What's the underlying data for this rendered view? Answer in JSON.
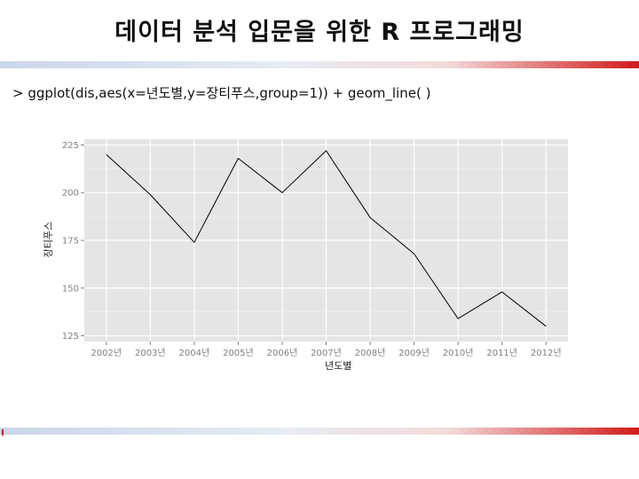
{
  "slide": {
    "title": "데이터 분석 입문을 위한 R 프로그래밍",
    "code": "> ggplot(dis,aes(x=년도별,y=장티푸스,group=1)) + geom_line( )"
  },
  "colors": {
    "panel_bg": "#e5e5e5",
    "grid_major": "#ffffff",
    "line": "#000000",
    "tick_text": "#7f7f7f"
  },
  "chart_data": {
    "type": "line",
    "xlabel": "년도별",
    "ylabel": "장티푸스",
    "categories": [
      "2002년",
      "2003년",
      "2004년",
      "2005년",
      "2006년",
      "2007년",
      "2008년",
      "2009년",
      "2010년",
      "2011년",
      "2012년"
    ],
    "series": [
      {
        "values": [
          220,
          199,
          174,
          218,
          200,
          222,
          187,
          168,
          134,
          148,
          130
        ]
      }
    ],
    "ylim": [
      122,
      228
    ],
    "yticks": [
      125,
      150,
      175,
      200,
      225
    ],
    "grid": true,
    "legend": "none"
  }
}
